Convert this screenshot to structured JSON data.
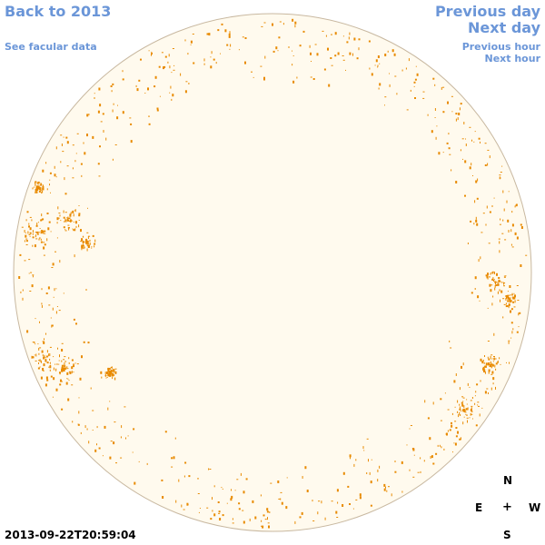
{
  "nav": {
    "back": "Back to 2013",
    "facular": "See facular data",
    "prev_day": "Previous day",
    "next_day": "Next day",
    "prev_hour": "Previous hour",
    "next_hour": "Next hour"
  },
  "compass": {
    "north": "N",
    "south": "S",
    "east": "E",
    "west": "W",
    "center": "+"
  },
  "timestamp": "2013-09-22T20:59:04",
  "colors": {
    "link": "#6b96d8",
    "disk_fill": "#fffaee",
    "disk_edge": "#c8b8a0",
    "facula": "#e88a00"
  }
}
